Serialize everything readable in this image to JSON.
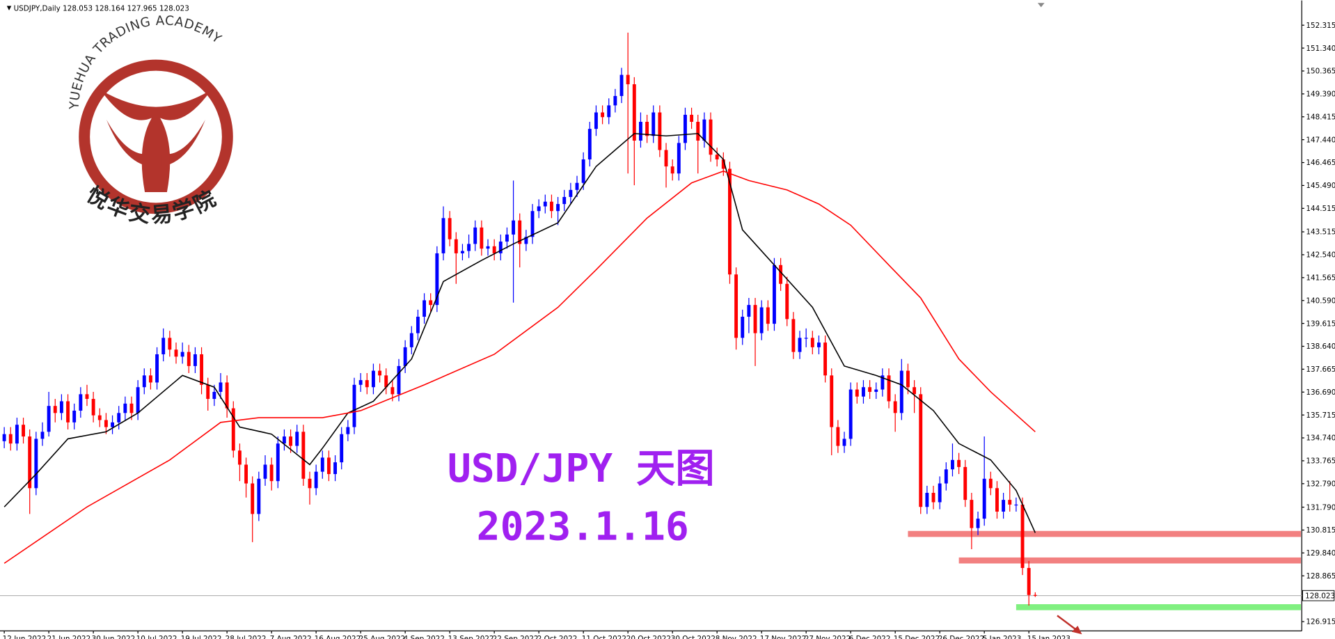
{
  "chart_data": {
    "type": "candlestick",
    "title": "USDJPY,Daily  128.053 128.164 127.965 128.023",
    "annotations": [
      "USD/JPY 天图",
      "2023.1.16"
    ],
    "logo": {
      "text": "YUEHUA TRADING ACADEMY",
      "text_cn": "悦华交易学院"
    },
    "categories": [
      "12 Jun 2022",
      null,
      null,
      null,
      null,
      null,
      null,
      "21 Jun 2022",
      null,
      null,
      null,
      null,
      null,
      null,
      "30 Jun 2022",
      null,
      null,
      null,
      null,
      null,
      null,
      "10 Jul 2022",
      null,
      null,
      null,
      null,
      null,
      null,
      "19 Jul 2022",
      null,
      null,
      null,
      null,
      null,
      null,
      "28 Jul 2022",
      null,
      null,
      null,
      null,
      null,
      null,
      "7 Aug 2022",
      null,
      null,
      null,
      null,
      null,
      null,
      "16 Aug 2022",
      null,
      null,
      null,
      null,
      null,
      null,
      "25 Aug 2022",
      null,
      null,
      null,
      null,
      null,
      null,
      "4 Sep 2022",
      null,
      null,
      null,
      null,
      null,
      null,
      "13 Sep 2022",
      null,
      null,
      null,
      null,
      null,
      null,
      "22 Sep 2022",
      null,
      null,
      null,
      null,
      null,
      null,
      "2 Oct 2022",
      null,
      null,
      null,
      null,
      null,
      null,
      "11 Oct 2022",
      null,
      null,
      null,
      null,
      null,
      null,
      "20 Oct 2022",
      null,
      null,
      null,
      null,
      null,
      null,
      "30 Oct 2022",
      null,
      null,
      null,
      null,
      null,
      null,
      "8 Nov 2022",
      null,
      null,
      null,
      null,
      null,
      null,
      "17 Nov 2022",
      null,
      null,
      null,
      null,
      null,
      null,
      "27 Nov 2022",
      null,
      null,
      null,
      null,
      null,
      null,
      "6 Dec 2022",
      null,
      null,
      null,
      null,
      null,
      null,
      "15 Dec 2022",
      null,
      null,
      null,
      null,
      null,
      null,
      "26 Dec 2022",
      null,
      null,
      null,
      null,
      null,
      null,
      "5 Jan 2023",
      null,
      null,
      null,
      null,
      null,
      null,
      "15 Jan 2023",
      null
    ],
    "open": [
      134.6,
      134.9,
      134.5,
      135.3,
      134.8,
      132.6,
      134.7,
      135.0,
      136.1,
      135.8,
      136.3,
      135.4,
      135.9,
      136.6,
      136.4,
      135.7,
      135.5,
      135.2,
      135.4,
      135.8,
      136.2,
      135.8,
      136.9,
      137.4,
      137.1,
      138.3,
      139.0,
      138.5,
      138.2,
      138.4,
      137.8,
      138.3,
      137.0,
      136.4,
      136.7,
      137.1,
      136.0,
      134.2,
      133.6,
      132.8,
      131.5,
      133.0,
      133.6,
      132.9,
      134.5,
      134.8,
      134.4,
      135.0,
      133.0,
      132.6,
      133.3,
      133.9,
      133.2,
      133.7,
      134.9,
      135.2,
      137.0,
      137.2,
      136.9,
      137.6,
      137.4,
      136.9,
      136.6,
      137.8,
      138.6,
      139.2,
      139.9,
      140.6,
      140.4,
      142.6,
      144.1,
      143.2,
      142.6,
      142.7,
      143.0,
      143.7,
      142.8,
      142.9,
      142.6,
      143.1,
      143.4,
      144.0,
      143.0,
      143.3,
      144.4,
      144.6,
      144.8,
      144.4,
      144.7,
      145.0,
      145.3,
      145.6,
      146.6,
      147.9,
      148.6,
      148.4,
      148.9,
      149.3,
      150.2,
      149.8,
      147.4,
      148.2,
      147.6,
      148.6,
      147.0,
      146.3,
      146.0,
      147.3,
      148.5,
      148.2,
      147.4,
      148.3,
      146.8,
      146.6,
      146.2,
      141.7,
      139.0,
      139.9,
      140.4,
      139.2,
      140.3,
      139.6,
      142.1,
      141.3,
      139.8,
      138.4,
      139.0,
      139.0,
      138.6,
      138.8,
      137.4,
      135.2,
      134.4,
      134.7,
      136.8,
      136.5,
      136.9,
      136.7,
      136.8,
      137.4,
      136.3,
      135.8,
      137.6,
      136.9,
      136.6,
      131.8,
      132.4,
      132.0,
      132.8,
      133.4,
      133.8,
      133.5,
      132.1,
      130.9,
      131.3,
      133.0,
      132.6,
      131.6,
      132.1,
      131.9,
      131.9,
      129.2,
      128.053
    ],
    "high": [
      135.2,
      135.2,
      135.6,
      135.6,
      135.1,
      135.0,
      135.4,
      136.7,
      136.4,
      136.6,
      136.6,
      136.2,
      136.9,
      137.0,
      136.7,
      136.0,
      135.8,
      135.7,
      136.1,
      136.5,
      136.5,
      137.2,
      137.7,
      137.7,
      138.6,
      139.4,
      139.3,
      138.8,
      138.8,
      138.7,
      138.6,
      138.6,
      137.3,
      137.0,
      137.5,
      137.4,
      136.3,
      134.5,
      133.9,
      133.1,
      133.3,
      134.0,
      133.9,
      134.8,
      135.1,
      135.1,
      135.3,
      135.3,
      133.3,
      133.6,
      134.2,
      134.2,
      134.0,
      135.2,
      135.5,
      137.3,
      137.5,
      137.5,
      137.9,
      137.9,
      137.7,
      137.2,
      138.1,
      138.9,
      139.5,
      140.2,
      140.9,
      140.9,
      142.9,
      144.6,
      144.4,
      143.5,
      143.0,
      143.4,
      144.0,
      144.0,
      143.2,
      143.2,
      143.4,
      143.7,
      145.7,
      144.3,
      143.6,
      144.7,
      144.9,
      145.1,
      145.1,
      145.0,
      145.3,
      145.6,
      145.9,
      146.9,
      148.2,
      148.9,
      148.9,
      149.2,
      149.6,
      150.5,
      152.0,
      150.1,
      148.6,
      148.5,
      148.9,
      148.9,
      147.3,
      146.6,
      147.6,
      148.8,
      148.8,
      148.5,
      148.6,
      148.6,
      147.1,
      146.9,
      146.5,
      142.0,
      140.2,
      140.7,
      140.7,
      140.6,
      140.6,
      142.4,
      142.4,
      141.6,
      140.1,
      139.3,
      139.4,
      139.3,
      139.1,
      139.1,
      137.7,
      135.5,
      135.0,
      137.1,
      137.1,
      137.2,
      137.2,
      137.1,
      137.7,
      137.7,
      136.6,
      138.1,
      137.9,
      137.2,
      136.9,
      132.7,
      132.7,
      133.1,
      133.7,
      134.5,
      134.1,
      133.8,
      132.4,
      131.6,
      134.8,
      133.3,
      132.9,
      132.4,
      132.9,
      132.2,
      132.2,
      129.5,
      128.164
    ],
    "low": [
      134.3,
      134.2,
      134.2,
      134.5,
      131.5,
      132.3,
      134.4,
      134.8,
      135.4,
      135.5,
      135.1,
      135.1,
      135.6,
      136.1,
      135.4,
      135.2,
      134.9,
      134.9,
      135.1,
      135.5,
      135.5,
      135.5,
      136.6,
      136.8,
      136.8,
      138.0,
      138.2,
      137.9,
      137.9,
      137.5,
      137.5,
      136.6,
      135.9,
      136.1,
      136.4,
      135.6,
      133.9,
      132.9,
      132.2,
      130.3,
      131.2,
      132.7,
      132.5,
      132.6,
      134.2,
      134.1,
      134.1,
      132.7,
      131.9,
      132.3,
      133.0,
      132.9,
      132.9,
      133.4,
      134.6,
      134.9,
      136.7,
      136.6,
      136.6,
      137.1,
      136.6,
      136.3,
      136.3,
      137.5,
      138.3,
      138.9,
      139.6,
      140.1,
      140.1,
      142.3,
      142.9,
      141.3,
      142.3,
      142.4,
      142.7,
      142.5,
      142.5,
      142.3,
      142.3,
      142.8,
      140.5,
      142.0,
      142.7,
      143.0,
      144.1,
      144.3,
      144.1,
      143.8,
      144.4,
      144.7,
      145.0,
      145.3,
      146.3,
      147.6,
      148.1,
      148.1,
      148.6,
      149.0,
      146.0,
      145.5,
      147.1,
      147.3,
      147.3,
      146.7,
      145.4,
      145.7,
      145.7,
      147.0,
      147.9,
      146.0,
      147.1,
      146.5,
      146.3,
      145.9,
      141.3,
      138.5,
      138.7,
      139.2,
      137.8,
      138.9,
      139.3,
      139.3,
      141.0,
      139.5,
      138.1,
      138.1,
      138.6,
      138.3,
      138.3,
      137.1,
      134.0,
      134.1,
      134.1,
      134.4,
      136.2,
      136.2,
      136.4,
      136.4,
      136.5,
      136.0,
      135.0,
      135.5,
      136.6,
      135.8,
      131.5,
      131.5,
      131.7,
      131.7,
      132.5,
      133.1,
      133.2,
      131.8,
      130.0,
      130.6,
      131.0,
      132.3,
      131.3,
      131.3,
      131.6,
      131.6,
      128.9,
      127.6,
      127.965
    ],
    "close": [
      134.9,
      134.5,
      135.3,
      134.8,
      132.6,
      134.7,
      135.0,
      136.1,
      135.8,
      136.3,
      135.4,
      135.9,
      136.6,
      136.4,
      135.7,
      135.5,
      135.2,
      135.4,
      135.8,
      136.2,
      135.8,
      136.9,
      137.4,
      137.1,
      138.3,
      139.0,
      138.5,
      138.2,
      138.4,
      137.8,
      138.3,
      137.0,
      136.4,
      136.7,
      137.1,
      136.0,
      134.2,
      133.6,
      132.8,
      131.5,
      133.0,
      133.6,
      132.9,
      134.5,
      134.8,
      134.4,
      135.0,
      133.0,
      132.6,
      133.3,
      133.9,
      133.2,
      133.7,
      134.9,
      135.2,
      137.0,
      137.2,
      136.9,
      137.6,
      137.4,
      136.9,
      136.6,
      137.8,
      138.6,
      139.2,
      139.9,
      140.6,
      140.4,
      142.6,
      144.1,
      143.2,
      142.6,
      142.7,
      143.0,
      143.7,
      142.8,
      142.9,
      142.6,
      143.1,
      143.4,
      144.0,
      143.0,
      143.3,
      144.4,
      144.6,
      144.8,
      144.4,
      144.7,
      145.0,
      145.3,
      145.6,
      146.6,
      147.9,
      148.6,
      148.4,
      148.9,
      149.3,
      150.2,
      149.8,
      147.4,
      148.2,
      147.6,
      148.6,
      147.0,
      146.3,
      146.0,
      147.3,
      148.5,
      148.2,
      147.4,
      148.3,
      146.8,
      146.6,
      146.2,
      141.7,
      139.0,
      139.9,
      140.4,
      139.2,
      140.3,
      139.6,
      142.1,
      141.3,
      139.8,
      138.4,
      139.0,
      139.0,
      138.6,
      138.8,
      137.4,
      135.2,
      134.4,
      134.7,
      136.8,
      136.5,
      136.9,
      136.7,
      136.8,
      137.4,
      136.3,
      135.8,
      137.6,
      136.9,
      136.6,
      131.8,
      132.4,
      132.0,
      132.8,
      133.4,
      133.8,
      133.5,
      132.1,
      130.9,
      131.3,
      133.0,
      132.6,
      131.6,
      132.1,
      131.9,
      131.9,
      129.2,
      128.05,
      128.023
    ],
    "up_color": "#0000ff",
    "down_color": "#ff0000",
    "ylim": [
      126.52,
      153.37
    ],
    "yticks": [
      152.315,
      {
        "value": 151.34,
        "label": "151.340"
      },
      150.365,
      {
        "value": 149.39,
        "label": "149.390"
      },
      148.415,
      {
        "value": 147.44,
        "label": "147.440"
      },
      146.465,
      {
        "value": 145.49,
        "label": "145.490"
      },
      144.515,
      143.515,
      {
        "value": 142.54,
        "label": "142.540"
      },
      141.565,
      {
        "value": 140.59,
        "label": "140.590"
      },
      139.615,
      {
        "value": 138.64,
        "label": "138.640"
      },
      137.665,
      {
        "value": 136.69,
        "label": "136.690"
      },
      135.715,
      {
        "value": 134.74,
        "label": "134.740"
      },
      133.765,
      {
        "value": 132.79,
        "label": "132.790"
      },
      {
        "value": 131.79,
        "label": "131.790"
      },
      130.815,
      {
        "value": 129.84,
        "label": "129.840"
      },
      128.865,
      126.915
    ],
    "last_price": 128.023,
    "moving_averages": [
      {
        "color": "#000000",
        "x": [
          0,
          5,
          10,
          16,
          21,
          28,
          33,
          37,
          42,
          48,
          50,
          54,
          58,
          64,
          69,
          75,
          80,
          87,
          93,
          99,
          104,
          109,
          113,
          116,
          121,
          127,
          132,
          137,
          141,
          146,
          150,
          155,
          159,
          162
        ],
        "values": [
          131.8,
          133.2,
          134.7,
          135.0,
          135.8,
          137.4,
          136.9,
          135.2,
          134.9,
          133.6,
          134.3,
          135.8,
          136.3,
          138.1,
          141.4,
          142.3,
          143.0,
          143.9,
          146.3,
          147.7,
          147.6,
          147.7,
          146.6,
          143.6,
          142.1,
          140.3,
          137.8,
          137.4,
          137.0,
          135.9,
          134.5,
          133.8,
          132.5,
          130.7
        ]
      },
      {
        "color": "#ff0000",
        "x": [
          0,
          13,
          26,
          34,
          40,
          50,
          56,
          66,
          77,
          87,
          93,
          101,
          108,
          113,
          117,
          123,
          128,
          133,
          139,
          144,
          150,
          155,
          162
        ],
        "values": [
          129.4,
          131.8,
          133.8,
          135.4,
          135.6,
          135.6,
          135.9,
          137.0,
          138.3,
          140.3,
          141.9,
          144.1,
          145.6,
          146.1,
          145.7,
          145.3,
          144.7,
          143.8,
          142.1,
          140.7,
          138.1,
          136.7,
          135.0
        ]
      }
    ],
    "levels": [
      {
        "value": 130.65,
        "from": 142,
        "color": "#f28080"
      },
      {
        "value": 129.52,
        "from": 150,
        "color": "#f28080"
      },
      {
        "value": 127.53,
        "from": 159,
        "color": "#80f080"
      }
    ]
  }
}
